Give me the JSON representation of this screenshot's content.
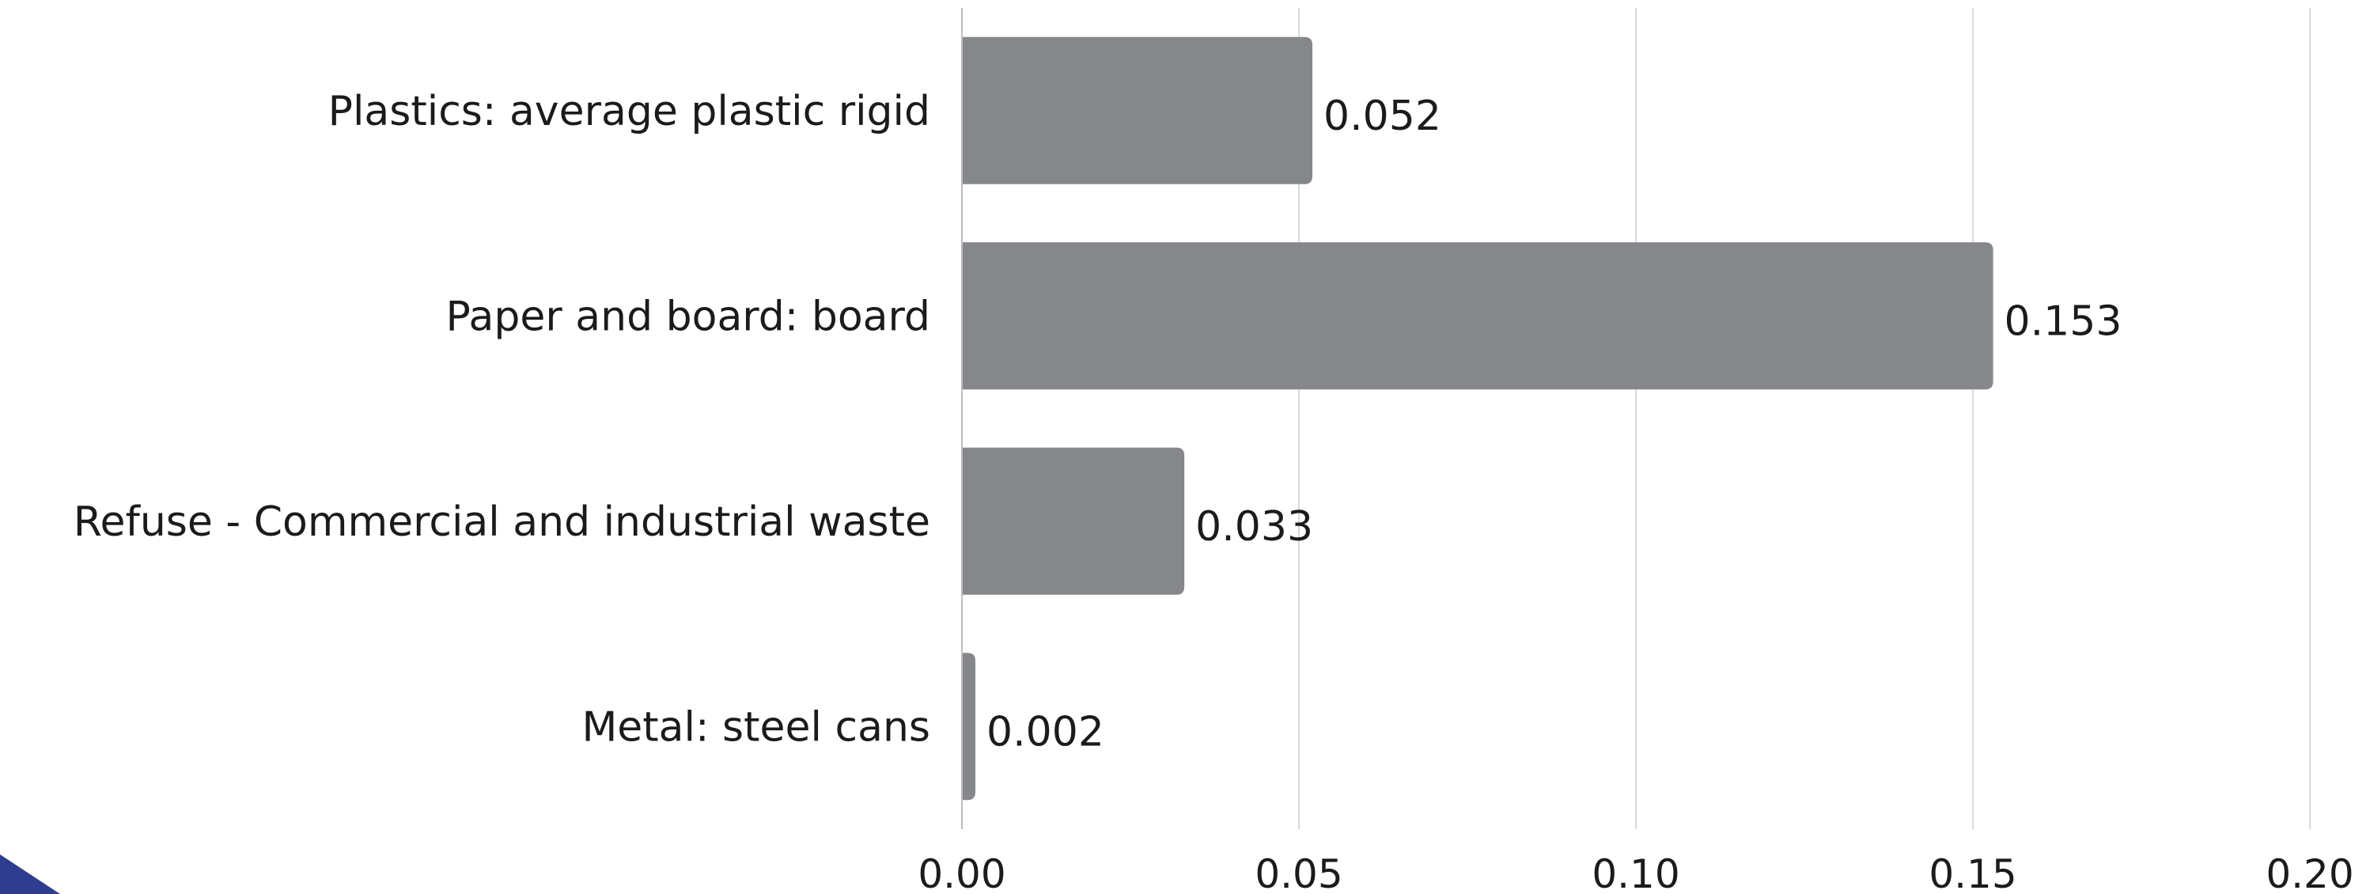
{
  "chart_data": {
    "type": "bar",
    "orientation": "horizontal",
    "title": "",
    "xlabel": "",
    "ylabel": "",
    "categories": [
      "Plastics: average plastic rigid",
      "Paper and board: board",
      "Refuse - Commercial and industrial waste",
      "Metal: steel cans"
    ],
    "values": [
      0.052,
      0.153,
      0.033,
      0.002
    ],
    "value_labels": [
      "0.052",
      "0.153",
      "0.033",
      "0.002"
    ],
    "xlim": [
      0,
      0.2
    ],
    "xticks": [
      0,
      0.05,
      0.1,
      0.15,
      0.2
    ],
    "xtick_labels": [
      "0.00",
      "0.05",
      "0.10",
      "0.15",
      "0.20"
    ],
    "grid": "vertical",
    "legend": "none",
    "colors": {
      "bar": "#86878b",
      "grid": "#d9d9d9",
      "axis": "#bdbdbd",
      "text": "#1b1b1b",
      "corner_mark": "#2e3d8f"
    }
  }
}
